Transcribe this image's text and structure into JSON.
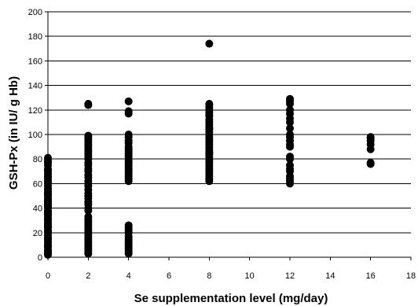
{
  "chart_data": {
    "type": "scatter",
    "title": "",
    "xlabel": "Se supplementation level (mg/day)",
    "ylabel": "GSH-Px (in IU/ g Hb)",
    "xlim": [
      0,
      18
    ],
    "ylim": [
      0,
      200
    ],
    "xticks": [
      0,
      2,
      4,
      6,
      8,
      10,
      12,
      14,
      16,
      18
    ],
    "yticks": [
      0,
      20,
      40,
      60,
      80,
      100,
      120,
      140,
      160,
      180,
      200
    ],
    "grid": "horizontal",
    "legend": "none",
    "marker_color": "#000000",
    "series": [
      {
        "x": [
          0,
          0,
          0,
          0,
          0,
          0,
          0,
          0,
          0,
          0,
          0,
          0,
          0,
          0,
          0,
          0,
          0,
          0,
          0,
          0,
          0,
          0,
          0,
          0,
          0,
          0,
          0,
          0,
          0,
          0,
          0,
          0,
          0,
          0,
          0,
          0,
          0,
          0,
          0,
          0,
          0,
          0,
          0,
          0,
          0,
          0,
          0,
          0,
          0,
          0,
          0,
          0,
          0,
          0,
          0,
          0,
          0,
          0,
          0,
          0,
          2,
          2,
          2,
          2,
          2,
          2,
          2,
          2,
          2,
          2,
          2,
          2,
          2,
          2,
          2,
          2,
          2,
          2,
          2,
          2,
          2,
          2,
          2,
          2,
          2,
          2,
          2,
          2,
          2,
          2,
          2,
          2,
          2,
          2,
          2,
          2,
          2,
          2,
          2,
          2,
          2,
          2,
          2,
          2,
          2,
          2,
          4,
          4,
          4,
          4,
          4,
          4,
          4,
          4,
          4,
          4,
          4,
          4,
          4,
          4,
          4,
          4,
          4,
          4,
          4,
          4,
          4,
          4,
          4,
          4,
          4,
          4,
          4,
          4,
          4,
          4,
          4,
          4,
          4,
          4,
          8,
          8,
          8,
          8,
          8,
          8,
          8,
          8,
          8,
          8,
          8,
          8,
          8,
          8,
          8,
          8,
          8,
          8,
          8,
          8,
          8,
          8,
          8,
          8,
          8,
          8,
          8,
          8,
          8,
          8,
          8,
          8,
          8,
          8,
          8,
          8,
          12,
          12,
          12,
          12,
          12,
          12,
          12,
          12,
          12,
          12,
          12,
          12,
          12,
          12,
          12,
          12,
          12,
          12,
          12,
          12,
          12,
          12,
          16,
          16,
          16,
          16,
          16,
          16,
          16
        ],
        "y": [
          2,
          3,
          4,
          5,
          6,
          8,
          9,
          10,
          12,
          14,
          15,
          16,
          18,
          20,
          22,
          24,
          25,
          27,
          28,
          30,
          32,
          34,
          35,
          36,
          38,
          40,
          42,
          43,
          45,
          46,
          48,
          50,
          52,
          53,
          55,
          58,
          60,
          62,
          63,
          65,
          68,
          70,
          72,
          75,
          77,
          78,
          80,
          81,
          21,
          26,
          31,
          37,
          44,
          51,
          56,
          61,
          66,
          71,
          47,
          41,
          3,
          5,
          7,
          9,
          11,
          13,
          15,
          17,
          19,
          21,
          23,
          25,
          27,
          29,
          31,
          38,
          40,
          45,
          48,
          50,
          52,
          55,
          58,
          60,
          62,
          65,
          67,
          70,
          72,
          75,
          77,
          80,
          82,
          84,
          86,
          88,
          90,
          92,
          94,
          96,
          98,
          99,
          125,
          124,
          33,
          43,
          3,
          5,
          7,
          9,
          11,
          13,
          15,
          17,
          20,
          22,
          24,
          26,
          62,
          64,
          66,
          68,
          70,
          72,
          74,
          76,
          78,
          80,
          82,
          84,
          86,
          88,
          90,
          93,
          95,
          98,
          100,
          117,
          119,
          127,
          62,
          64,
          66,
          68,
          70,
          72,
          74,
          76,
          78,
          80,
          82,
          84,
          86,
          88,
          90,
          92,
          94,
          96,
          98,
          100,
          102,
          105,
          108,
          110,
          112,
          115,
          116,
          118,
          120,
          122,
          124,
          125,
          174,
          104,
          85,
          106,
          60,
          62,
          64,
          66,
          70,
          72,
          75,
          80,
          82,
          90,
          92,
          95,
          98,
          100,
          105,
          110,
          113,
          117,
          120,
          125,
          127,
          129,
          76,
          77,
          88,
          92,
          95,
          97,
          98
        ]
      }
    ]
  }
}
